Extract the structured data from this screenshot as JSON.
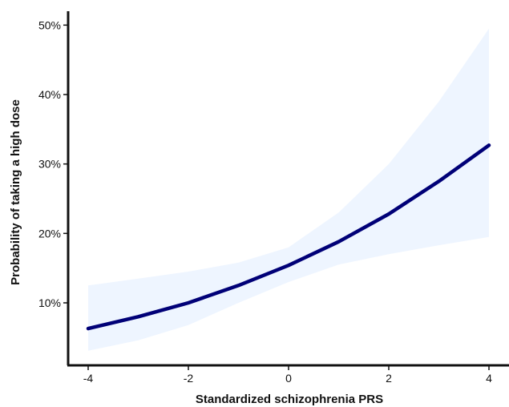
{
  "chart_data": {
    "type": "line",
    "title": "",
    "xlabel": "Standardized schizophrenia PRS",
    "ylabel": "Probability of taking a high dose",
    "xlim": [
      -4.4,
      4.4
    ],
    "ylim": [
      0.01,
      0.52
    ],
    "xticks": [
      {
        "value": -4,
        "label": "-4"
      },
      {
        "value": -2,
        "label": "-2"
      },
      {
        "value": 0,
        "label": "0"
      },
      {
        "value": 2,
        "label": "2"
      },
      {
        "value": 4,
        "label": "4"
      }
    ],
    "yticks": [
      {
        "value": 0.1,
        "label": "10%"
      },
      {
        "value": 0.2,
        "label": "20%"
      },
      {
        "value": 0.3,
        "label": "30%"
      },
      {
        "value": 0.4,
        "label": "40%"
      },
      {
        "value": 0.5,
        "label": "50%"
      }
    ],
    "grid": false,
    "legend": "none",
    "series": [
      {
        "x": [
          -4,
          -3,
          -2,
          -1,
          0,
          1,
          2,
          3,
          4
        ],
        "y": [
          0.063,
          0.08,
          0.1,
          0.125,
          0.154,
          0.188,
          0.228,
          0.275,
          0.327
        ],
        "lower": [
          0.031,
          0.046,
          0.068,
          0.1,
          0.13,
          0.155,
          0.17,
          0.183,
          0.195
        ],
        "upper": [
          0.125,
          0.135,
          0.145,
          0.158,
          0.18,
          0.23,
          0.3,
          0.39,
          0.495
        ],
        "color": "#000077",
        "band_color": "#eef5ff"
      }
    ]
  }
}
